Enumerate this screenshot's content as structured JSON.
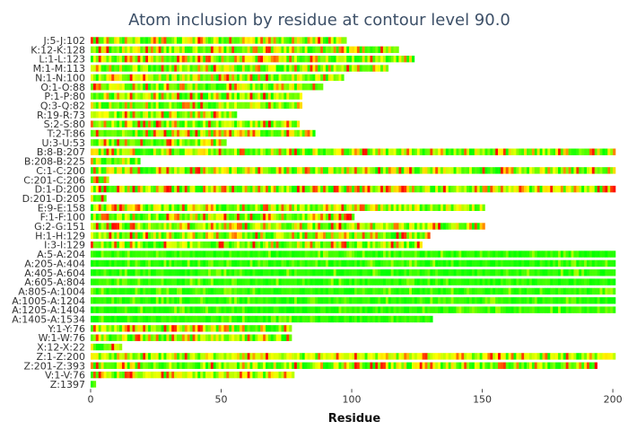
{
  "chart_data": {
    "type": "heatmap",
    "title": "Atom inclusion by residue at contour level 90.0",
    "xlabel": "Residue",
    "ylabel": "",
    "xlim": [
      0,
      201
    ],
    "xticks": [
      0,
      50,
      100,
      150,
      200
    ],
    "grid": false,
    "legend": "none",
    "colors": {
      "low": "#ff0000",
      "mid": "#ffff00",
      "high": "#00ff00"
    },
    "rows": [
      {
        "label": "J:5-J:102",
        "start": 0,
        "end": 98,
        "profile": "mixed",
        "seed": 11
      },
      {
        "label": "K:12-K:128",
        "start": 0,
        "end": 118,
        "profile": "mixed",
        "seed": 12
      },
      {
        "label": "L:1-L:123",
        "start": 0,
        "end": 124,
        "profile": "mixed",
        "seed": 13
      },
      {
        "label": "M:1-M:113",
        "start": 0,
        "end": 114,
        "profile": "mixed",
        "seed": 14
      },
      {
        "label": "N:1-N:100",
        "start": 0,
        "end": 97,
        "profile": "mixed",
        "seed": 15
      },
      {
        "label": "O:1-O:88",
        "start": 0,
        "end": 89,
        "profile": "mixed",
        "seed": 16
      },
      {
        "label": "P:1-P:80",
        "start": 0,
        "end": 81,
        "profile": "mixed",
        "seed": 17
      },
      {
        "label": "Q:3-Q:82",
        "start": 0,
        "end": 81,
        "profile": "mixed",
        "seed": 18
      },
      {
        "label": "R:19-R:73",
        "start": 0,
        "end": 56,
        "profile": "mixed",
        "seed": 19
      },
      {
        "label": "S:2-S:80",
        "start": 0,
        "end": 80,
        "profile": "mixed",
        "seed": 20
      },
      {
        "label": "T:2-T:86",
        "start": 0,
        "end": 86,
        "profile": "mixed",
        "seed": 21
      },
      {
        "label": "U:3-U:53",
        "start": 0,
        "end": 52,
        "profile": "mixed",
        "seed": 22
      },
      {
        "label": "B:8-B:207",
        "start": 0,
        "end": 201,
        "profile": "mixed",
        "seed": 23
      },
      {
        "label": "B:208-B:225",
        "start": 0,
        "end": 19,
        "profile": "mixed",
        "seed": 24
      },
      {
        "label": "C:1-C:200",
        "start": 0,
        "end": 201,
        "profile": "mixed",
        "seed": 25
      },
      {
        "label": "C:201-C:206",
        "start": 0,
        "end": 7,
        "profile": "mixed",
        "seed": 26
      },
      {
        "label": "D:1-D:200",
        "start": 0,
        "end": 201,
        "profile": "redish",
        "seed": 27
      },
      {
        "label": "D:201-D:205",
        "start": 0,
        "end": 6,
        "profile": "mixed",
        "seed": 28
      },
      {
        "label": "E:9-E:158",
        "start": 0,
        "end": 151,
        "profile": "mixed",
        "seed": 29
      },
      {
        "label": "F:1-F:100",
        "start": 0,
        "end": 101,
        "profile": "mixed",
        "seed": 30
      },
      {
        "label": "G:2-G:151",
        "start": 0,
        "end": 151,
        "profile": "mixed",
        "seed": 31
      },
      {
        "label": "H:1-H:129",
        "start": 0,
        "end": 130,
        "profile": "mixed",
        "seed": 32
      },
      {
        "label": "I:3-I:129",
        "start": 0,
        "end": 127,
        "profile": "mixed",
        "seed": 33
      },
      {
        "label": "A:5-A:204",
        "start": 0,
        "end": 201,
        "profile": "green",
        "seed": 34
      },
      {
        "label": "A:205-A:404",
        "start": 0,
        "end": 201,
        "profile": "green",
        "seed": 35
      },
      {
        "label": "A:405-A:604",
        "start": 0,
        "end": 201,
        "profile": "green",
        "seed": 36
      },
      {
        "label": "A:605-A:804",
        "start": 0,
        "end": 201,
        "profile": "green",
        "seed": 37
      },
      {
        "label": "A:805-A:1004",
        "start": 0,
        "end": 201,
        "profile": "green",
        "seed": 38
      },
      {
        "label": "A:1005-A:1204",
        "start": 0,
        "end": 201,
        "profile": "green",
        "seed": 39
      },
      {
        "label": "A:1205-A:1404",
        "start": 0,
        "end": 201,
        "profile": "green",
        "seed": 40
      },
      {
        "label": "A:1405-A:1534",
        "start": 0,
        "end": 131,
        "profile": "green",
        "seed": 41
      },
      {
        "label": "Y:1-Y:76",
        "start": 0,
        "end": 77,
        "profile": "mixed",
        "seed": 42
      },
      {
        "label": "W:1-W:76",
        "start": 0,
        "end": 77,
        "profile": "mixed",
        "seed": 43
      },
      {
        "label": "X:12-X:22",
        "start": 0,
        "end": 12,
        "profile": "mixed",
        "seed": 44
      },
      {
        "label": "Z:1-Z:200",
        "start": 0,
        "end": 201,
        "profile": "yellow",
        "seed": 45
      },
      {
        "label": "Z:201-Z:393",
        "start": 0,
        "end": 194,
        "profile": "mixed",
        "seed": 46
      },
      {
        "label": "V:1-V:76",
        "start": 0,
        "end": 78,
        "profile": "yellow",
        "seed": 47
      },
      {
        "label": "Z:1397",
        "start": 0,
        "end": 2,
        "profile": "green",
        "seed": 48
      }
    ]
  }
}
